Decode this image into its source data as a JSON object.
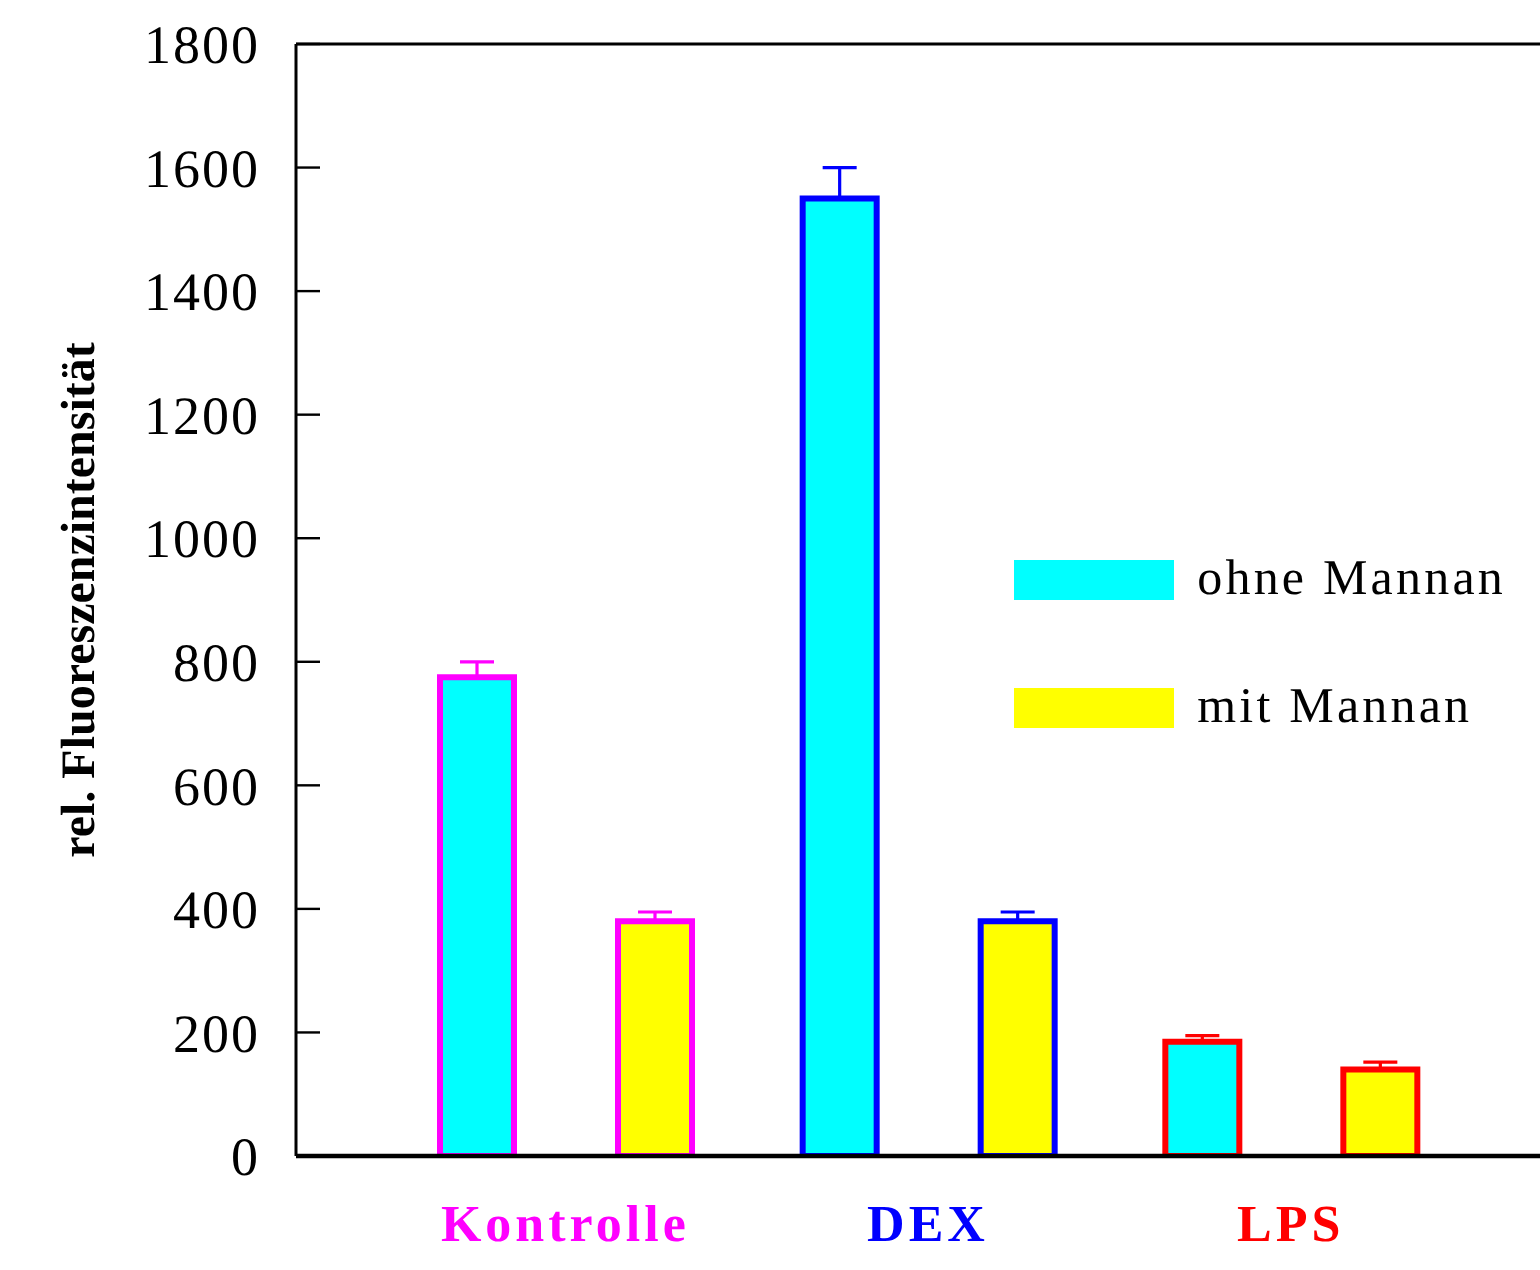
{
  "chart_data": {
    "type": "bar",
    "ylabel": "rel. Fluoreszenzintensität",
    "categories": [
      "Kontrolle",
      "DEX",
      "LPS"
    ],
    "series": [
      {
        "name": "ohne Mannan",
        "color": "#00ffff",
        "values": [
          775,
          1550,
          185
        ],
        "errors": [
          25,
          50,
          10
        ]
      },
      {
        "name": "mit Mannan",
        "color": "#ffff00",
        "values": [
          380,
          380,
          140
        ],
        "errors": [
          15,
          15,
          12
        ]
      }
    ],
    "ylim": [
      0,
      1800
    ],
    "yticks": [
      0,
      200,
      400,
      600,
      800,
      1000,
      1200,
      1400,
      1600,
      1800
    ],
    "legend": "right"
  }
}
